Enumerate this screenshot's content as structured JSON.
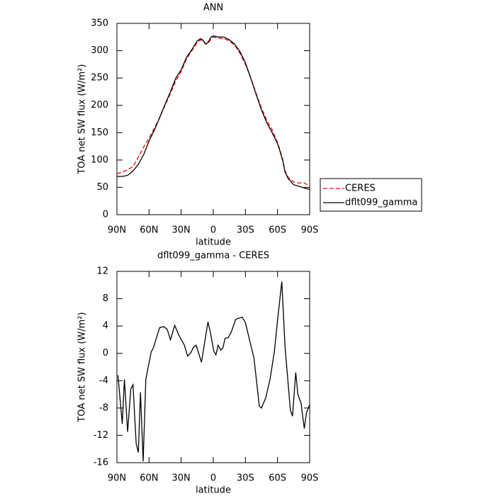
{
  "chart_data": [
    {
      "type": "line",
      "title": "ANN",
      "xlabel": "latitude",
      "ylabel": "TOA net SW flux (W/m²)",
      "x": [
        90,
        85,
        80,
        75,
        70,
        65,
        60,
        55,
        50,
        45,
        40,
        35,
        30,
        25,
        20,
        15,
        12,
        10,
        7,
        5,
        2,
        0,
        -5,
        -10,
        -15,
        -20,
        -25,
        -30,
        -35,
        -40,
        -45,
        -50,
        -55,
        -60,
        -62,
        -65,
        -67,
        -70,
        -75,
        -80,
        -85,
        -90
      ],
      "series": [
        {
          "name": "CERES",
          "color": "#ff0000",
          "dashed": true,
          "values": [
            75,
            78,
            82,
            88,
            105,
            124,
            140,
            158,
            178,
            200,
            222,
            245,
            262,
            285,
            300,
            315,
            320,
            318,
            312,
            313,
            322,
            325,
            323,
            322,
            318,
            310,
            295,
            275,
            250,
            222,
            195,
            172,
            155,
            132,
            120,
            100,
            80,
            68,
            60,
            58,
            58,
            52
          ]
        },
        {
          "name": "dflt099_gamma",
          "color": "#000000",
          "dashed": false,
          "values": [
            70,
            70,
            72,
            80,
            92,
            110,
            135,
            155,
            178,
            202,
            225,
            250,
            265,
            288,
            302,
            318,
            322,
            320,
            312,
            315,
            325,
            327,
            325,
            325,
            320,
            312,
            298,
            278,
            250,
            220,
            192,
            168,
            150,
            130,
            118,
            98,
            78,
            66,
            55,
            52,
            49,
            46
          ]
        }
      ],
      "xlim": [
        90,
        -90
      ],
      "xticks": [
        {
          "value": 90,
          "label": "90N"
        },
        {
          "value": 60,
          "label": "60N"
        },
        {
          "value": 30,
          "label": "30N"
        },
        0,
        {
          "value": -30,
          "label": "30S"
        },
        {
          "value": -60,
          "label": "60S"
        },
        {
          "value": -90,
          "label": "90S"
        }
      ],
      "ylim": [
        0,
        350
      ],
      "yticks": [
        0,
        50,
        100,
        150,
        200,
        250,
        300,
        350
      ],
      "legend": "right"
    },
    {
      "type": "line",
      "title": "dflt099_gamma - CERES",
      "xlabel": "latitude",
      "ylabel": "TOA net SW flux (W/m²)",
      "x": [
        89,
        85,
        83,
        80,
        77,
        75,
        72,
        70,
        68,
        65.5,
        63,
        58,
        56,
        50,
        46,
        43,
        40,
        36,
        32,
        27,
        24,
        21,
        18.5,
        16,
        14,
        11,
        5,
        3,
        -0.5,
        -2.5,
        -4.5,
        -7,
        -9,
        -11,
        -14,
        -17,
        -21,
        -27,
        -30,
        -38,
        -43,
        -45,
        -49,
        -53,
        -57,
        -60,
        -64,
        -67,
        -72,
        -74,
        -77,
        -79,
        -82,
        -85,
        -87,
        -90
      ],
      "series": [
        {
          "color": "#000000",
          "dashed": false,
          "values": [
            -3.2,
            -10.3,
            -3.8,
            -11.5,
            -5.2,
            -4.6,
            -13.2,
            -14.5,
            -5.7,
            -15.8,
            -3.8,
            0.2,
            0.8,
            3.8,
            3.9,
            3.5,
            2.0,
            4.1,
            2.6,
            1.2,
            -0.4,
            0.1,
            0.9,
            1.2,
            0.2,
            -1.3,
            4.6,
            3.3,
            0.3,
            -0.2,
            1.2,
            0.5,
            0.8,
            2.2,
            2.3,
            3.2,
            5,
            5.3,
            4.5,
            -0.7,
            -7.7,
            -8,
            -6.5,
            -3.8,
            0.2,
            4.8,
            10.5,
            1,
            -8.3,
            -9.2,
            -2.8,
            -6,
            -7.3,
            -11,
            -8.7,
            -7.5
          ]
        }
      ],
      "xlim": [
        90,
        -90
      ],
      "xticks": [
        {
          "value": 90,
          "label": "90N"
        },
        {
          "value": 60,
          "label": "60N"
        },
        {
          "value": 30,
          "label": "30N"
        },
        0,
        {
          "value": -30,
          "label": "30S"
        },
        {
          "value": -60,
          "label": "60S"
        },
        {
          "value": -90,
          "label": "90S"
        }
      ],
      "ylim": [
        -16,
        12
      ],
      "yticks": [
        -16,
        -12,
        -8,
        -4,
        0,
        4,
        8,
        12
      ]
    }
  ]
}
